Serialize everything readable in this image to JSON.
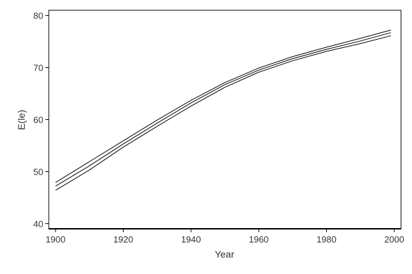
{
  "chart_data": {
    "type": "line",
    "title": "",
    "xlabel": "Year",
    "ylabel": "E(le)",
    "xlim": [
      1898,
      2002
    ],
    "ylim": [
      39,
      81
    ],
    "x_ticks": [
      1900,
      1920,
      1940,
      1960,
      1980,
      2000
    ],
    "y_ticks": [
      40,
      50,
      60,
      70,
      80
    ],
    "grid": false,
    "series": [
      {
        "x": [
          1900,
          1910,
          1920,
          1930,
          1940,
          1950,
          1960,
          1970,
          1980,
          1990,
          1999
        ],
        "values": [
          47.9,
          51.9,
          55.9,
          59.9,
          63.7,
          67.1,
          69.9,
          72.1,
          73.9,
          75.6,
          77.2
        ]
      },
      {
        "x": [
          1900,
          1910,
          1920,
          1930,
          1940,
          1950,
          1960,
          1970,
          1980,
          1990,
          1999
        ],
        "values": [
          47.2,
          51.1,
          55.3,
          59.3,
          63.2,
          66.7,
          69.5,
          71.7,
          73.5,
          75.1,
          76.7
        ]
      },
      {
        "x": [
          1900,
          1910,
          1920,
          1930,
          1940,
          1950,
          1960,
          1970,
          1980,
          1990,
          1999
        ],
        "values": [
          46.4,
          50.3,
          54.7,
          58.7,
          62.6,
          66.2,
          69.1,
          71.3,
          73.1,
          74.6,
          76.1
        ]
      }
    ],
    "colors": {
      "line": "#000000",
      "axis": "#000000",
      "text": "#333333"
    }
  }
}
